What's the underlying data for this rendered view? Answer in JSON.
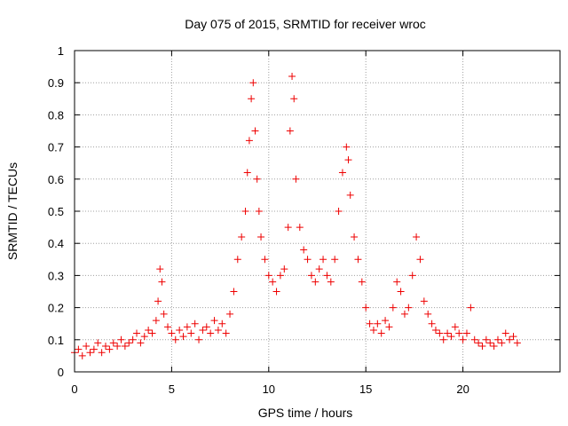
{
  "chart_data": {
    "type": "scatter",
    "title": "Day 075 of 2015, SRMTID for receiver wroc",
    "xlabel": "GPS time / hours",
    "ylabel": "SRMTID / TECUs",
    "xlim": [
      0,
      25
    ],
    "ylim": [
      0,
      1
    ],
    "xticks": [
      0,
      5,
      10,
      15,
      20
    ],
    "yticks": [
      0,
      0.1,
      0.2,
      0.3,
      0.4,
      0.5,
      0.6,
      0.7,
      0.8,
      0.9,
      1
    ],
    "xtick_labels": [
      "0",
      "5",
      "10",
      "15",
      "20"
    ],
    "ytick_labels": [
      "0",
      "0.1",
      "0.2",
      "0.3",
      "0.4",
      "0.5",
      "0.6",
      "0.7",
      "0.8",
      "0.9",
      "1"
    ],
    "grid": true,
    "marker": "+",
    "color": "#ee0000",
    "series": [
      {
        "name": "wroc",
        "x": [
          0.0,
          0.2,
          0.4,
          0.6,
          0.8,
          1.0,
          1.2,
          1.4,
          1.6,
          1.8,
          2.0,
          2.2,
          2.4,
          2.6,
          2.8,
          3.0,
          3.2,
          3.4,
          3.6,
          3.8,
          4.0,
          4.2,
          4.3,
          4.4,
          4.5,
          4.6,
          4.8,
          5.0,
          5.2,
          5.4,
          5.6,
          5.8,
          6.0,
          6.2,
          6.4,
          6.6,
          6.8,
          7.0,
          7.2,
          7.4,
          7.6,
          7.8,
          8.0,
          8.2,
          8.4,
          8.6,
          8.8,
          8.9,
          9.0,
          9.1,
          9.2,
          9.3,
          9.4,
          9.5,
          9.6,
          9.8,
          10.0,
          10.2,
          10.4,
          10.6,
          10.8,
          11.0,
          11.1,
          11.2,
          11.3,
          11.4,
          11.6,
          11.8,
          12.0,
          12.2,
          12.4,
          12.6,
          12.8,
          13.0,
          13.2,
          13.4,
          13.6,
          13.8,
          14.0,
          14.1,
          14.2,
          14.4,
          14.6,
          14.8,
          15.0,
          15.2,
          15.4,
          15.6,
          15.8,
          16.0,
          16.2,
          16.4,
          16.6,
          16.8,
          17.0,
          17.2,
          17.4,
          17.6,
          17.8,
          18.0,
          18.2,
          18.4,
          18.6,
          18.8,
          19.0,
          19.2,
          19.4,
          19.6,
          19.8,
          20.0,
          20.2,
          20.4,
          20.6,
          20.8,
          21.0,
          21.2,
          21.4,
          21.6,
          21.8,
          22.0,
          22.2,
          22.4,
          22.6,
          22.8
        ],
        "y": [
          0.06,
          0.07,
          0.05,
          0.08,
          0.06,
          0.07,
          0.09,
          0.06,
          0.08,
          0.07,
          0.09,
          0.08,
          0.1,
          0.08,
          0.09,
          0.1,
          0.12,
          0.09,
          0.11,
          0.13,
          0.12,
          0.16,
          0.22,
          0.32,
          0.28,
          0.18,
          0.14,
          0.12,
          0.1,
          0.13,
          0.11,
          0.14,
          0.12,
          0.15,
          0.1,
          0.13,
          0.14,
          0.12,
          0.16,
          0.13,
          0.15,
          0.12,
          0.18,
          0.25,
          0.35,
          0.42,
          0.5,
          0.62,
          0.72,
          0.85,
          0.9,
          0.75,
          0.6,
          0.5,
          0.42,
          0.35,
          0.3,
          0.28,
          0.25,
          0.3,
          0.32,
          0.45,
          0.75,
          0.92,
          0.85,
          0.6,
          0.45,
          0.38,
          0.35,
          0.3,
          0.28,
          0.32,
          0.35,
          0.3,
          0.28,
          0.35,
          0.5,
          0.62,
          0.7,
          0.66,
          0.55,
          0.42,
          0.35,
          0.28,
          0.2,
          0.15,
          0.13,
          0.15,
          0.12,
          0.16,
          0.14,
          0.2,
          0.28,
          0.25,
          0.18,
          0.2,
          0.3,
          0.42,
          0.35,
          0.22,
          0.18,
          0.15,
          0.13,
          0.12,
          0.1,
          0.12,
          0.11,
          0.14,
          0.12,
          0.1,
          0.12,
          0.2,
          0.1,
          0.09,
          0.08,
          0.1,
          0.09,
          0.08,
          0.1,
          0.09,
          0.12,
          0.1,
          0.11,
          0.09
        ]
      }
    ]
  }
}
